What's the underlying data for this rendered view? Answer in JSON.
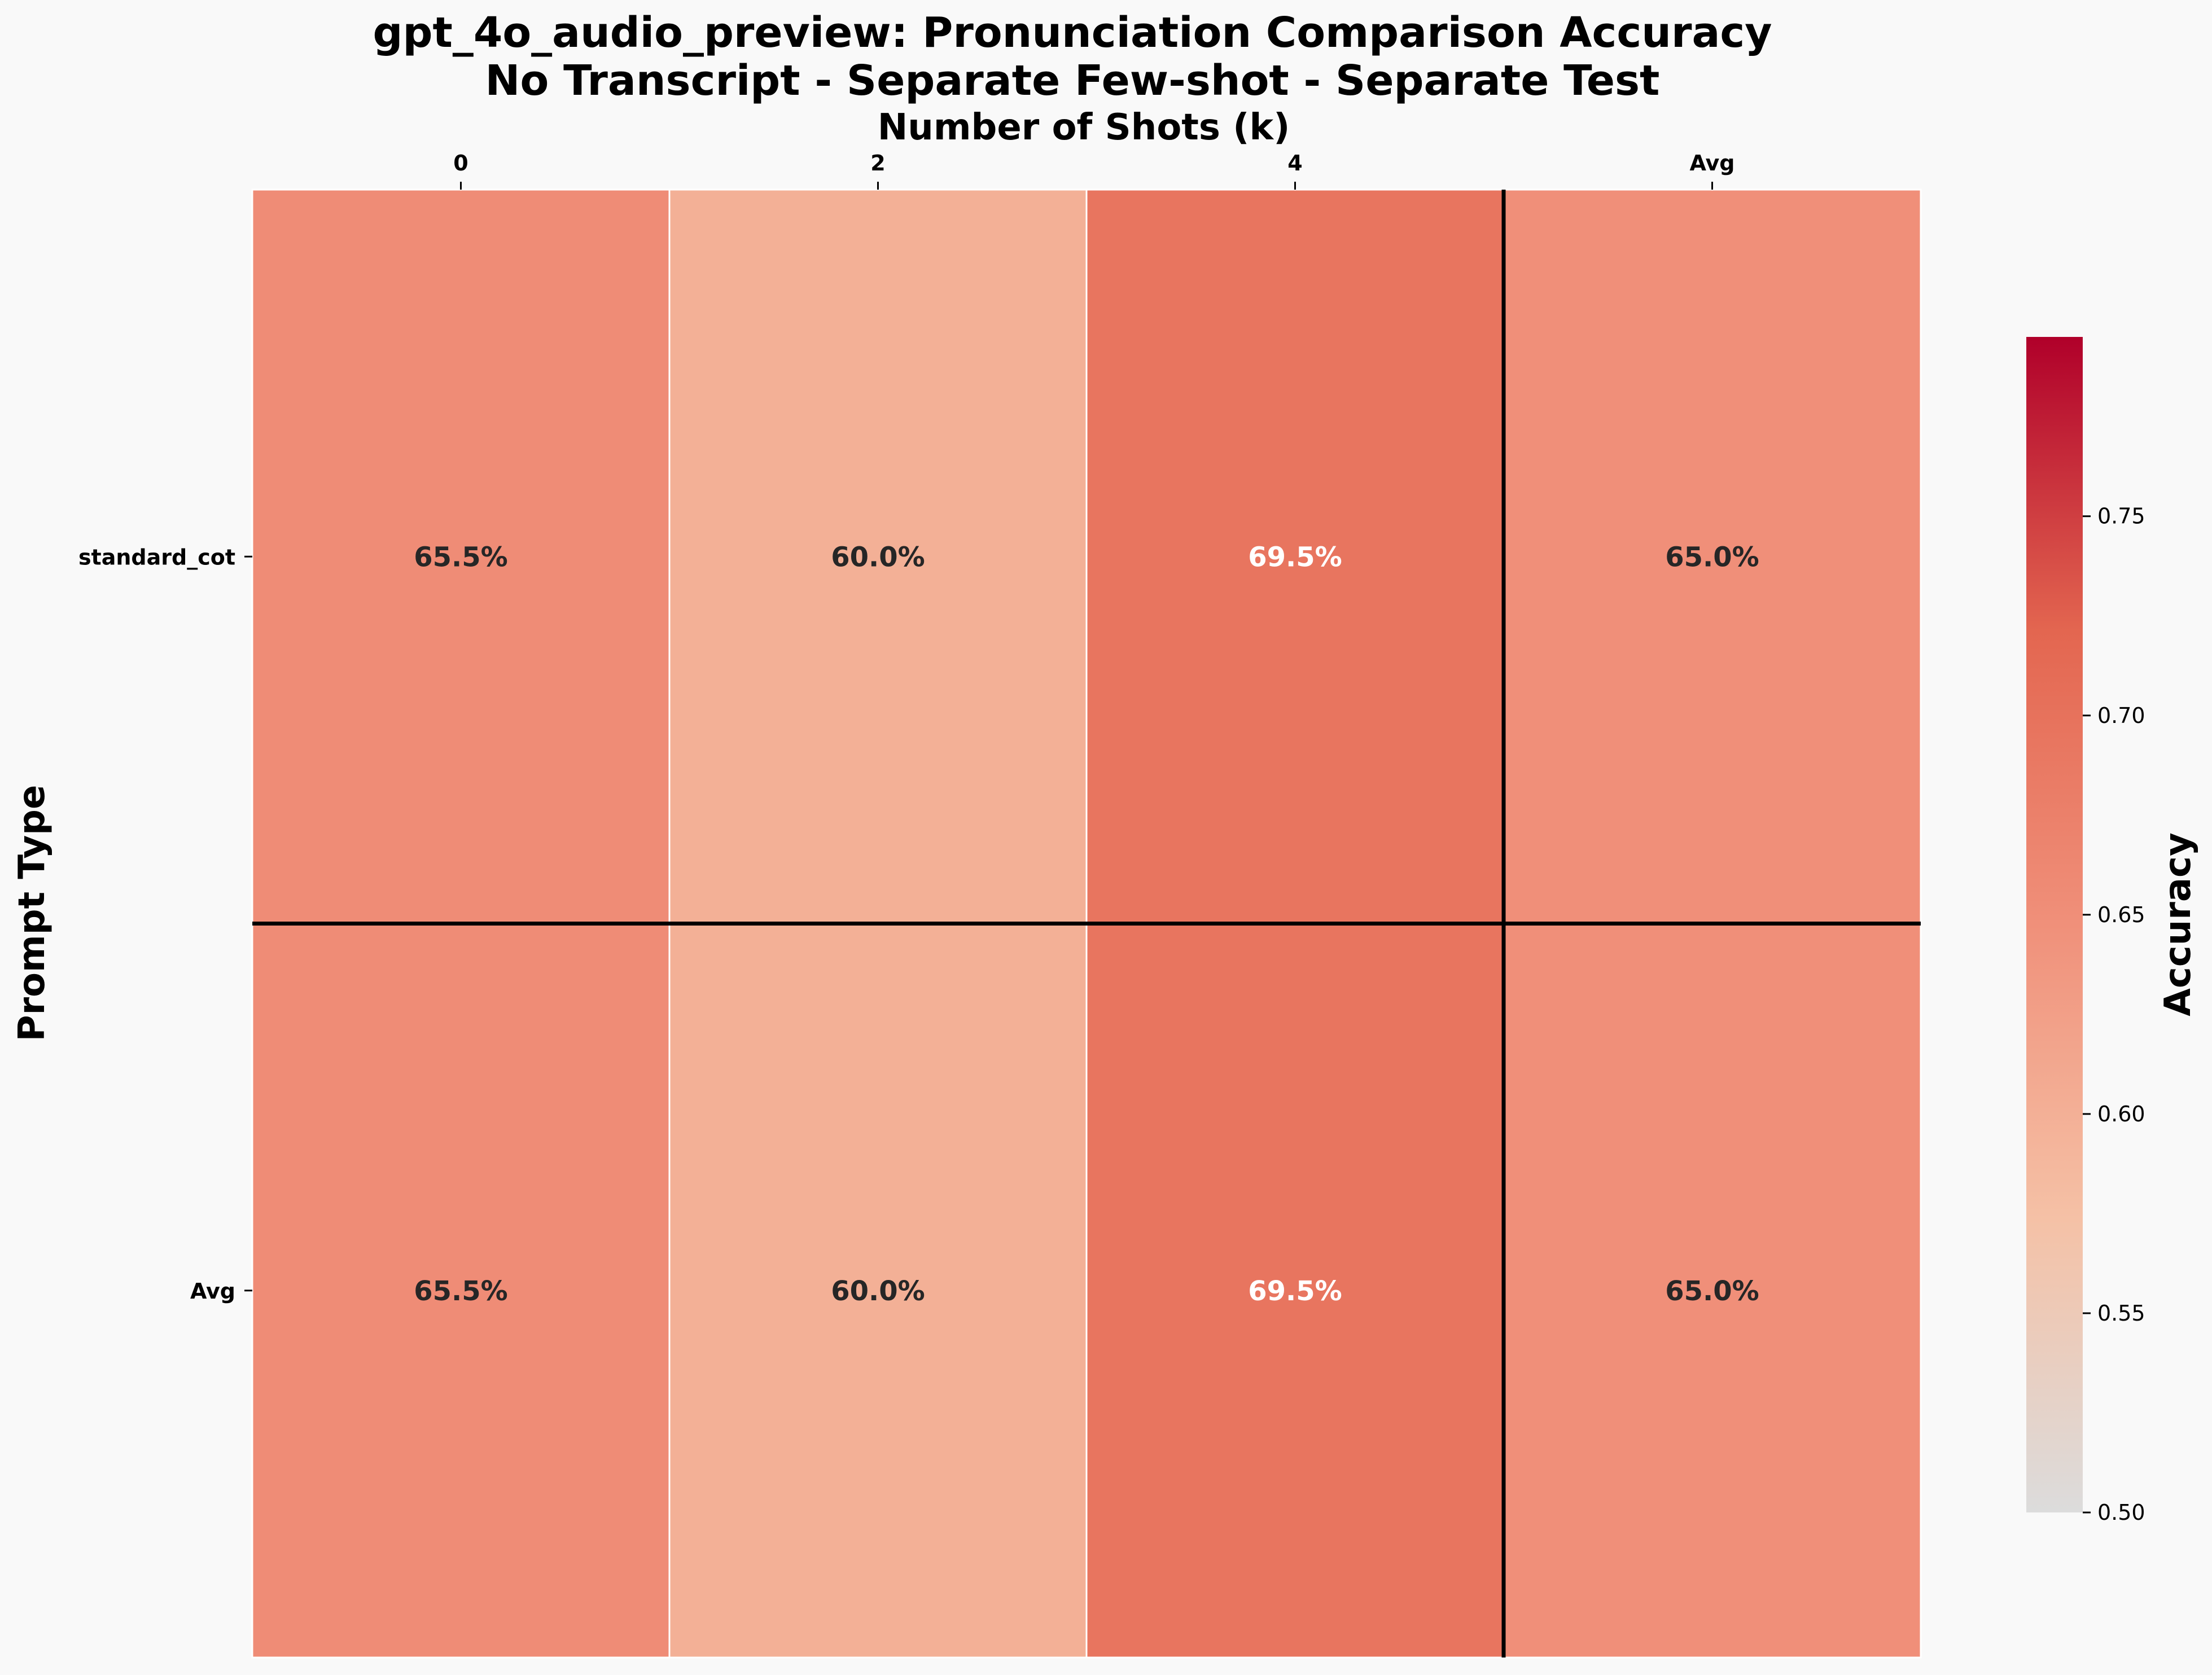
{
  "chart_data": {
    "type": "heatmap",
    "title": "gpt_4o_audio_preview: Pronunciation Comparison Accuracy",
    "subtitle": "No Transcript - Separate Few-shot - Separate Test",
    "xlabel": "Number of Shots (k)",
    "ylabel": "Prompt Type",
    "x_categories": [
      "0",
      "2",
      "4",
      "Avg"
    ],
    "y_categories": [
      "standard_cot",
      "Avg"
    ],
    "values": [
      [
        0.655,
        0.6,
        0.695,
        0.65
      ],
      [
        0.655,
        0.6,
        0.695,
        0.65
      ]
    ],
    "cell_labels": [
      [
        "65.5%",
        "60.0%",
        "69.5%",
        "65.0%"
      ],
      [
        "65.5%",
        "60.0%",
        "69.5%",
        "65.0%"
      ]
    ],
    "colorbar": {
      "label": "Accuracy",
      "range": [
        0.5,
        0.795
      ],
      "ticks": [
        "0.50",
        "0.55",
        "0.60",
        "0.65",
        "0.70",
        "0.75"
      ],
      "colors": [
        "#dcdcdc",
        "#f5c1a6",
        "#f0907a",
        "#e36650",
        "#b0002a"
      ]
    },
    "separators": {
      "after_row": 1,
      "after_col": 3
    },
    "grid": false
  }
}
